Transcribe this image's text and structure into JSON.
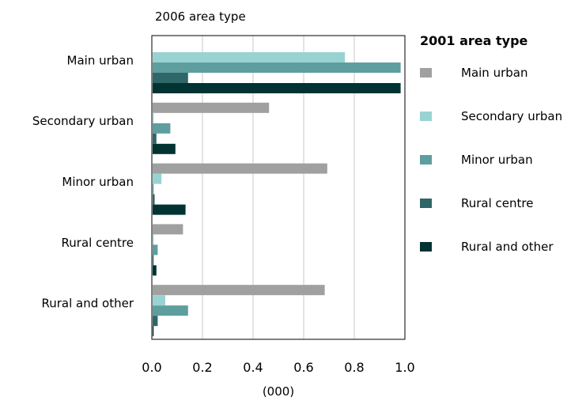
{
  "chart_data": {
    "type": "bar",
    "orientation": "horizontal",
    "title": "2006 area type",
    "xlabel": "(000)",
    "xlim": [
      0,
      1.0
    ],
    "x_ticks": [
      "0.0",
      "0.2",
      "0.4",
      "0.6",
      "0.8",
      "1.0"
    ],
    "grid": "vertical",
    "legend_title": "2001 area type",
    "legend_position": "right",
    "categories": [
      "Main urban",
      "Secondary urban",
      "Minor urban",
      "Rural centre",
      "Rural and other"
    ],
    "series": [
      {
        "name": "Main urban",
        "color": "#a0a0a0",
        "values": [
          0,
          0.46,
          0.69,
          0.12,
          0.68
        ]
      },
      {
        "name": "Secondary urban",
        "color": "#99d3d1",
        "values": [
          0.76,
          0.004,
          0.035,
          0.004,
          0.05
        ]
      },
      {
        "name": "Minor urban",
        "color": "#5e9e9f",
        "values": [
          0.98,
          0.07,
          0.004,
          0.02,
          0.14
        ]
      },
      {
        "name": "Rural centre",
        "color": "#2f6668",
        "values": [
          0.14,
          0.015,
          0.008,
          0.004,
          0.02
        ]
      },
      {
        "name": "Rural and other",
        "color": "#013333",
        "values": [
          0.98,
          0.09,
          0.13,
          0.015,
          0.004
        ]
      }
    ]
  }
}
